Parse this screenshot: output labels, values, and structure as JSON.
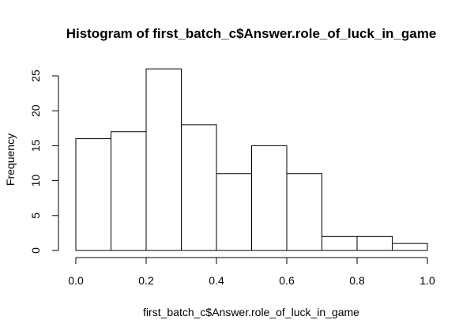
{
  "chart_data": {
    "type": "bar",
    "title": "Histogram of first_batch_c$Answer.role_of_luck_in_game",
    "xlabel": "first_batch_c$Answer.role_of_luck_in_game",
    "ylabel": "Frequency",
    "bins": [
      {
        "start": 0.0,
        "end": 0.1,
        "count": 16
      },
      {
        "start": 0.1,
        "end": 0.2,
        "count": 17
      },
      {
        "start": 0.2,
        "end": 0.3,
        "count": 26
      },
      {
        "start": 0.3,
        "end": 0.4,
        "count": 18
      },
      {
        "start": 0.4,
        "end": 0.5,
        "count": 11
      },
      {
        "start": 0.5,
        "end": 0.6,
        "count": 15
      },
      {
        "start": 0.6,
        "end": 0.7,
        "count": 11
      },
      {
        "start": 0.7,
        "end": 0.8,
        "count": 2
      },
      {
        "start": 0.8,
        "end": 0.9,
        "count": 2
      },
      {
        "start": 0.9,
        "end": 1.0,
        "count": 1
      }
    ],
    "xlim": [
      0,
      1
    ],
    "ylim": [
      0,
      25
    ],
    "xticks": [
      0,
      0.2,
      0.4,
      0.6,
      0.8,
      1
    ],
    "xtick_labels": [
      "0.0",
      "0.2",
      "0.4",
      "0.6",
      "0.8",
      "1.0"
    ],
    "yticks": [
      0,
      5,
      10,
      15,
      20,
      25
    ],
    "ytick_labels": [
      "0",
      "5",
      "10",
      "15",
      "20",
      "25"
    ],
    "grid": false,
    "colors": {
      "bar_fill": "#ffffff",
      "bar_stroke": "#000000",
      "background": "#ffffff"
    }
  }
}
